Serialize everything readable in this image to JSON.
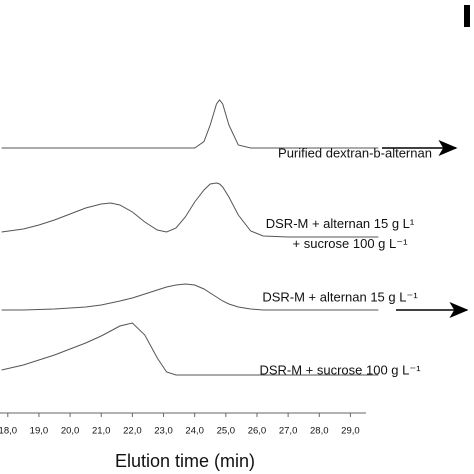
{
  "chart_data": {
    "type": "line",
    "x_label": "Elution time (min)",
    "x": [
      17.8,
      18.5,
      19.0,
      19.5,
      20.0,
      20.5,
      21.0,
      21.3,
      21.6,
      22.0,
      22.4,
      22.8,
      23.1,
      23.4,
      23.7,
      24.0,
      24.3,
      24.5,
      24.7,
      24.8,
      24.9,
      25.1,
      25.4,
      25.8,
      26.2,
      27.0,
      28.0,
      29.9
    ],
    "xlim": [
      17.75,
      29.95
    ],
    "xticks": [
      {
        "value": 18,
        "label": "18,0"
      },
      {
        "value": 19,
        "label": "19,0"
      },
      {
        "value": 20,
        "label": "20,0"
      },
      {
        "value": 21,
        "label": "21,0"
      },
      {
        "value": 22,
        "label": "22,0"
      },
      {
        "value": 23,
        "label": "23,0"
      },
      {
        "value": 24,
        "label": "24,0"
      },
      {
        "value": 25,
        "label": "25,0"
      },
      {
        "value": 26,
        "label": "26,0"
      },
      {
        "value": 27,
        "label": "27,0"
      },
      {
        "value": 28,
        "label": "28,0"
      },
      {
        "value": 29,
        "label": "29,0"
      }
    ],
    "ylim": [
      0,
      60
    ],
    "series": [
      {
        "name": "Purified dextran-b-alternan",
        "color": "#555555",
        "values": [
          0,
          0,
          0,
          0,
          0,
          0,
          0,
          0,
          0,
          0,
          0,
          0,
          0,
          0,
          0,
          0,
          6.5,
          23,
          44,
          48,
          44,
          23,
          3,
          0,
          0,
          0,
          0,
          0
        ]
      },
      {
        "name": "DSR-M + alternan 15 g L¹\n+ sucrose 100 g L⁻¹",
        "color": "#555555",
        "values": [
          5,
          8,
          12,
          17,
          23,
          29,
          33,
          34,
          32,
          25,
          15,
          7,
          5,
          9,
          20,
          35,
          47,
          53,
          54,
          53,
          50,
          40,
          22,
          6,
          1,
          0,
          0,
          0
        ]
      },
      {
        "name": "DSR-M + alternan 15 g L⁻¹",
        "color": "#555555",
        "values": [
          0,
          0,
          0.5,
          1,
          2,
          3,
          5,
          7,
          9,
          12,
          16,
          20,
          23,
          25,
          26,
          25,
          21,
          17,
          13,
          11,
          9,
          6,
          3,
          1,
          0,
          0,
          0,
          0
        ]
      },
      {
        "name": "DSR-M + sucrose 100 g L⁻¹",
        "color": "#555555",
        "values": [
          5,
          10,
          15,
          20,
          26,
          32,
          39,
          44,
          49,
          52,
          40,
          17,
          3,
          0,
          0,
          0,
          0,
          0,
          0,
          0,
          0,
          0,
          0,
          0,
          0,
          0,
          0,
          0
        ]
      }
    ]
  }
}
